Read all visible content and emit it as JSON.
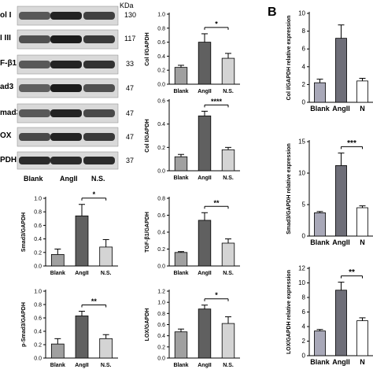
{
  "panel_letters": {
    "b": "B"
  },
  "western_blot": {
    "kda_header": "KDa",
    "rows": [
      {
        "label": "ol I",
        "mw": "130"
      },
      {
        "label": "I III",
        "mw": "117"
      },
      {
        "label": "F-β1",
        "mw": "33"
      },
      {
        "label": "ad3",
        "mw": "47"
      },
      {
        "label": "mad3",
        "mw": "47"
      },
      {
        "label": "OX",
        "mw": "47"
      },
      {
        "label": "PDH",
        "mw": "37"
      }
    ],
    "lanes": [
      "Blank",
      "AngII",
      "N.S."
    ]
  },
  "chart_data": [
    {
      "type": "bar",
      "id": "col1",
      "categories": [
        "Blank",
        "AngII",
        "N.S."
      ],
      "values": [
        0.24,
        0.6,
        0.37
      ],
      "errors": [
        0.03,
        0.12,
        0.07
      ],
      "colors": [
        "#a0a0a0",
        "#606060",
        "#d4d4d4"
      ],
      "ylabel": "Col I/GAPDH",
      "ylim": [
        0,
        1.0
      ],
      "yticks": [
        "0.0",
        "0.2",
        "0.4",
        "0.6",
        "0.8",
        "1.0"
      ],
      "significance": {
        "pair": [
          1,
          2
        ],
        "label": "*"
      }
    },
    {
      "type": "bar",
      "id": "col3",
      "categories": [
        "Blank",
        "AngII",
        "N.S."
      ],
      "values": [
        0.12,
        0.47,
        0.18
      ],
      "errors": [
        0.02,
        0.04,
        0.02
      ],
      "colors": [
        "#a0a0a0",
        "#606060",
        "#d4d4d4"
      ],
      "ylabel": "Col I/GAPDH",
      "ylim": [
        0,
        0.6
      ],
      "yticks": [
        "0.0",
        "0.2",
        "0.4",
        "0.6"
      ],
      "significance": {
        "pair": [
          1,
          2
        ],
        "label": "****"
      }
    },
    {
      "type": "bar",
      "id": "smad3",
      "categories": [
        "Blank",
        "AngII",
        "N.S."
      ],
      "values": [
        0.17,
        0.74,
        0.28
      ],
      "errors": [
        0.08,
        0.17,
        0.11
      ],
      "colors": [
        "#a0a0a0",
        "#606060",
        "#d4d4d4"
      ],
      "ylabel": "Smad3/GAPDH",
      "ylim": [
        0,
        1.0
      ],
      "yticks": [
        "0.0",
        "0.2",
        "0.4",
        "0.6",
        "0.8",
        "1.0"
      ],
      "significance": {
        "pair": [
          1,
          2
        ],
        "label": "*"
      }
    },
    {
      "type": "bar",
      "id": "tgfb",
      "categories": [
        "Blank",
        "AngII",
        "N.S."
      ],
      "values": [
        0.16,
        0.54,
        0.27
      ],
      "errors": [
        0.01,
        0.09,
        0.05
      ],
      "colors": [
        "#a0a0a0",
        "#606060",
        "#d4d4d4"
      ],
      "ylabel": "TGF-β1/GAPDH",
      "ylim": [
        0,
        0.8
      ],
      "yticks": [
        "0.0",
        "0.2",
        "0.4",
        "0.6",
        "0.8"
      ],
      "significance": {
        "pair": [
          1,
          2
        ],
        "label": "**"
      }
    },
    {
      "type": "bar",
      "id": "psmad3",
      "categories": [
        "Blank",
        "AngII",
        "N.S."
      ],
      "values": [
        0.21,
        0.63,
        0.29
      ],
      "errors": [
        0.08,
        0.07,
        0.06
      ],
      "colors": [
        "#a0a0a0",
        "#606060",
        "#d4d4d4"
      ],
      "ylabel": "p-Smad3/GAPDH",
      "ylim": [
        0,
        1.0
      ],
      "yticks": [
        "0.0",
        "0.2",
        "0.4",
        "0.6",
        "0.8",
        "1.0"
      ],
      "significance": {
        "pair": [
          1,
          2
        ],
        "label": "**"
      }
    },
    {
      "type": "bar",
      "id": "lox",
      "categories": [
        "Blank",
        "AngII",
        "N.S."
      ],
      "values": [
        0.47,
        0.88,
        0.62
      ],
      "errors": [
        0.05,
        0.07,
        0.12
      ],
      "colors": [
        "#a0a0a0",
        "#606060",
        "#d4d4d4"
      ],
      "ylabel": "LOX/GAPDH",
      "ylim": [
        0,
        1.2
      ],
      "yticks": [
        "0.0",
        "0.2",
        "0.4",
        "0.6",
        "0.8",
        "1.0",
        "1.2"
      ],
      "significance": {
        "pair": [
          1,
          2
        ],
        "label": "*"
      }
    },
    {
      "type": "bar",
      "id": "b_col",
      "categories": [
        "Blank",
        "AngII",
        "N"
      ],
      "values": [
        2.2,
        7.2,
        2.4
      ],
      "errors": [
        0.4,
        1.5,
        0.3
      ],
      "colors": [
        "#a8a8b8",
        "#6e6e78",
        "#ffffff"
      ],
      "ylabel": "Col I/GAPDH relative expression",
      "ylim": [
        0,
        10
      ],
      "yticks": [
        "0",
        "2",
        "4",
        "6",
        "8",
        "10"
      ],
      "significance": null
    },
    {
      "type": "bar",
      "id": "b_smad3",
      "categories": [
        "Blank",
        "AngII",
        "N"
      ],
      "values": [
        3.7,
        11.2,
        4.5
      ],
      "errors": [
        0.2,
        2.0,
        0.3
      ],
      "colors": [
        "#a8a8b8",
        "#6e6e78",
        "#ffffff"
      ],
      "ylabel": "Smad3/GAPDH relative expression",
      "ylim": [
        0,
        15
      ],
      "yticks": [
        "0",
        "5",
        "10",
        "15"
      ],
      "significance": {
        "pair": [
          1,
          2
        ],
        "label": "***"
      }
    },
    {
      "type": "bar",
      "id": "b_lox",
      "categories": [
        "Blank",
        "AngII",
        "N"
      ],
      "values": [
        3.4,
        9.0,
        4.8
      ],
      "errors": [
        0.2,
        1.1,
        0.4
      ],
      "colors": [
        "#a8a8b8",
        "#6e6e78",
        "#ffffff"
      ],
      "ylabel": "LOX/GAPDH relative expression",
      "ylim": [
        0,
        12
      ],
      "yticks": [
        "0",
        "2",
        "4",
        "6",
        "8",
        "10",
        "12"
      ],
      "significance": {
        "pair": [
          1,
          2
        ],
        "label": "**"
      }
    }
  ]
}
